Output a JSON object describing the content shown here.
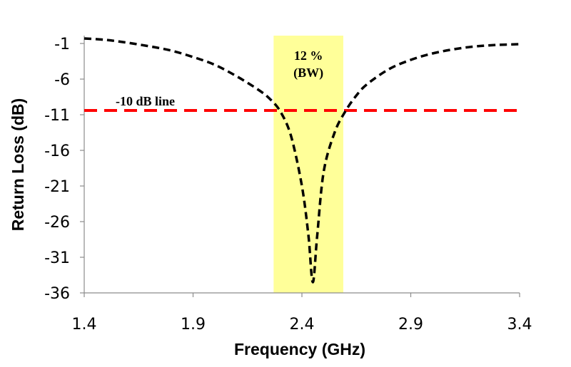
{
  "chart_data": {
    "type": "line",
    "xlabel": "Frequency (GHz)",
    "ylabel": "Return Loss (dB)",
    "xlim": [
      1.4,
      3.4
    ],
    "ylim": [
      -36,
      -1
    ],
    "x_ticks": [
      "1.4",
      "1.9",
      "2.4",
      "2.9",
      "3.4"
    ],
    "y_ticks": [
      "-1",
      "-6",
      "-11",
      "-16",
      "-21",
      "-26",
      "-31",
      "-36"
    ],
    "grid": false,
    "series": [
      {
        "style": "dashed",
        "color": "#000000",
        "x": [
          1.4,
          1.5,
          1.6,
          1.7,
          1.8,
          1.9,
          2.0,
          2.1,
          2.2,
          2.25,
          2.3,
          2.35,
          2.4,
          2.43,
          2.45,
          2.47,
          2.5,
          2.55,
          2.6,
          2.65,
          2.7,
          2.8,
          2.9,
          3.0,
          3.1,
          3.2,
          3.3,
          3.4
        ],
        "y": [
          -0.3,
          -0.5,
          -0.9,
          -1.4,
          -2.0,
          -2.9,
          -4.0,
          -5.6,
          -7.5,
          -8.7,
          -10.5,
          -14.0,
          -21.0,
          -28.0,
          -34.5,
          -28.0,
          -19.0,
          -13.5,
          -10.5,
          -8.3,
          -6.7,
          -4.6,
          -3.3,
          -2.4,
          -1.8,
          -1.4,
          -1.2,
          -1.1
        ]
      }
    ],
    "threshold_line": {
      "y": -10.4,
      "label": "-10 dB line",
      "color": "#ff0000",
      "style": "dashed"
    },
    "bandwidth_region": {
      "x_start": 2.27,
      "x_end": 2.59,
      "color": "#ffff99",
      "label_line1": "12 %",
      "label_line2": "(BW)"
    }
  }
}
